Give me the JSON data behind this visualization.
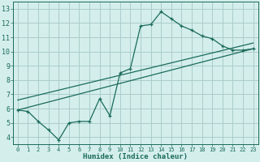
{
  "xlabel": "Humidex (Indice chaleur)",
  "bg_color": "#d4eeec",
  "grid_color": "#aaccca",
  "line_color": "#1a6b5a",
  "xlim": [
    -0.5,
    23.5
  ],
  "ylim": [
    3.5,
    13.5
  ],
  "xtick_vals": [
    0,
    1,
    2,
    3,
    4,
    5,
    6,
    7,
    8,
    9,
    10,
    11,
    12,
    13,
    14,
    15,
    16,
    17,
    18,
    19,
    20,
    21,
    22,
    23
  ],
  "xtick_labels": [
    "0",
    "1",
    "2",
    "3",
    "4",
    "5",
    "6",
    "7",
    "8",
    "9",
    "10",
    "11",
    "12",
    "13",
    "14",
    "15",
    "16",
    "17",
    "18",
    "19",
    "20",
    "21",
    "22",
    "23"
  ],
  "ytick_vals": [
    4,
    5,
    6,
    7,
    8,
    9,
    10,
    11,
    12,
    13
  ],
  "ytick_labels": [
    "4",
    "5",
    "6",
    "7",
    "8",
    "9",
    "10",
    "11",
    "12",
    "13"
  ],
  "line1_x": [
    0,
    1,
    2,
    3,
    4,
    5,
    6,
    7,
    8,
    9,
    10,
    11,
    12,
    13,
    14,
    15,
    16,
    17,
    18,
    19,
    20,
    21,
    22,
    23
  ],
  "line1_y": [
    5.9,
    5.8,
    5.1,
    4.5,
    3.8,
    5.0,
    5.1,
    5.1,
    6.7,
    5.5,
    8.5,
    8.8,
    11.8,
    11.9,
    12.8,
    12.3,
    11.8,
    11.5,
    11.1,
    10.9,
    10.4,
    10.1,
    10.1,
    10.2
  ],
  "line2_x": [
    0,
    23
  ],
  "line2_y": [
    5.9,
    10.2
  ],
  "line3_x": [
    0,
    23
  ],
  "line3_y": [
    6.6,
    10.6
  ]
}
